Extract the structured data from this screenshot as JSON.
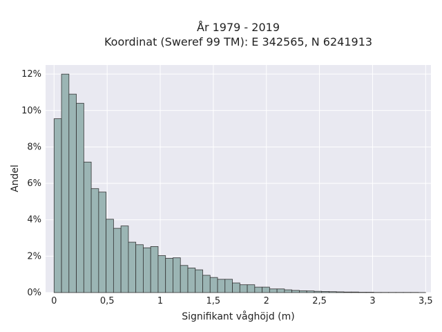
{
  "chart_data": {
    "type": "bar",
    "title_lines": [
      "År 1979 - 2019",
      "Koordinat (Sweref 99 TM): E 342565, N 6241913"
    ],
    "xlabel": "Signifikant våghöjd (m)",
    "ylabel": "Andel",
    "xlim": [
      -0.08,
      3.55
    ],
    "ylim": [
      0,
      0.125
    ],
    "x_ticks": [
      {
        "value": 0,
        "label": "0"
      },
      {
        "value": 0.5,
        "label": "0,5"
      },
      {
        "value": 1,
        "label": "1"
      },
      {
        "value": 1.5,
        "label": "1,5"
      },
      {
        "value": 2,
        "label": "2"
      },
      {
        "value": 2.5,
        "label": "2,5"
      },
      {
        "value": 3,
        "label": "3"
      },
      {
        "value": 3.5,
        "label": "3,5"
      }
    ],
    "y_ticks": [
      {
        "value": 0,
        "label": "0%"
      },
      {
        "value": 0.02,
        "label": "2%"
      },
      {
        "value": 0.04,
        "label": "4%"
      },
      {
        "value": 0.06,
        "label": "6%"
      },
      {
        "value": 0.08,
        "label": "8%"
      },
      {
        "value": 0.1,
        "label": "10%"
      },
      {
        "value": 0.12,
        "label": "12%"
      }
    ],
    "bin_width": 0.07,
    "bin_start": 0,
    "values": [
      0.0955,
      0.12,
      0.109,
      0.104,
      0.0717,
      0.0571,
      0.0552,
      0.0403,
      0.0353,
      0.0366,
      0.0277,
      0.0263,
      0.0246,
      0.0253,
      0.0203,
      0.0188,
      0.0191,
      0.0149,
      0.0135,
      0.0125,
      0.0095,
      0.0083,
      0.0073,
      0.0073,
      0.0053,
      0.0043,
      0.0043,
      0.003,
      0.003,
      0.002,
      0.002,
      0.0015,
      0.0012,
      0.001,
      0.0009,
      0.0007,
      0.0006,
      0.0005,
      0.0004,
      0.0003,
      0.0003,
      0.0002,
      0.0002,
      0.0001,
      0.0001,
      0.0001,
      0.0001,
      0.0001,
      0.0001,
      5e-05
    ],
    "colors": {
      "bar_fill": "#9bb5b4",
      "bar_stroke": "#333333",
      "plot_bg": "#e9e9f1",
      "grid": "#ffffff"
    },
    "grid": true
  }
}
